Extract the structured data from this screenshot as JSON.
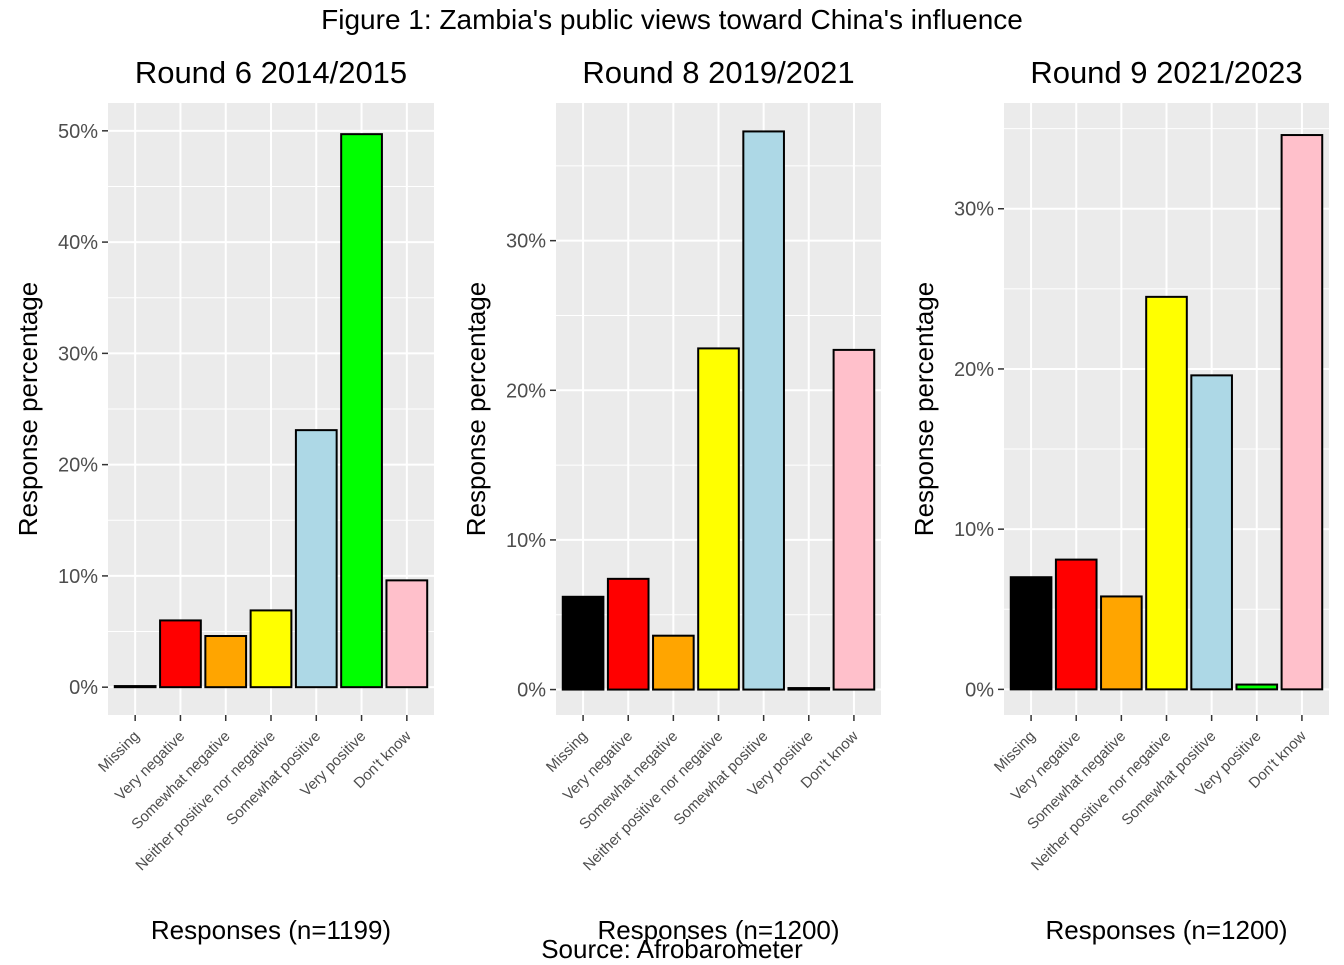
{
  "figure": {
    "title": "Figure 1: Zambia's public views toward China's influence",
    "source": "Source: Afrobarometer"
  },
  "colors": {
    "Missing": "#000000",
    "Very negative": "#ff0000",
    "Somewhat negative": "#ffa500",
    "Neither positive nor negative": "#ffff00",
    "Somewhat positive": "#add8e6",
    "Very positive": "#00ff00",
    "Don't know": "#ffc0cb",
    "panel_background": "#ebebeb",
    "grid": "#ffffff"
  },
  "chart_data": [
    {
      "type": "bar",
      "title": "Round 6 2014/2015",
      "xlabel": "Responses (n=1199)",
      "ylabel": "Response percentage",
      "categories": [
        "Missing",
        "Very negative",
        "Somewhat negative",
        "Neither positive nor negative",
        "Somewhat positive",
        "Very positive",
        "Don't know"
      ],
      "values": [
        0.1,
        6.0,
        4.6,
        6.9,
        23.1,
        49.7,
        9.6
      ],
      "ylim": [
        -2.5,
        52.5
      ],
      "yticks": [
        0,
        10,
        20,
        30,
        40,
        50
      ],
      "ytick_labels": [
        "0%",
        "10%",
        "20%",
        "30%",
        "40%",
        "50%"
      ],
      "grid": true,
      "legend": "none"
    },
    {
      "type": "bar",
      "title": "Round 8 2019/2021",
      "xlabel": "Responses (n=1200)",
      "ylabel": "Response percentage",
      "categories": [
        "Missing",
        "Very negative",
        "Somewhat negative",
        "Neither positive nor negative",
        "Somewhat positive",
        "Very positive",
        "Don't know"
      ],
      "values": [
        6.2,
        7.4,
        3.6,
        22.8,
        37.3,
        0.1,
        22.7
      ],
      "ylim": [
        -1.7,
        39.2
      ],
      "yticks": [
        0,
        10,
        20,
        30
      ],
      "ytick_labels": [
        "0%",
        "10%",
        "20%",
        "30%"
      ],
      "grid": true,
      "legend": "none"
    },
    {
      "type": "bar",
      "title": "Round 9 2021/2023",
      "xlabel": "Responses (n=1200)",
      "ylabel": "Response percentage",
      "categories": [
        "Missing",
        "Very negative",
        "Somewhat negative",
        "Neither positive nor negative",
        "Somewhat positive",
        "Very positive",
        "Don't know"
      ],
      "values": [
        7.0,
        8.1,
        5.8,
        24.5,
        19.6,
        0.3,
        34.6
      ],
      "ylim": [
        -1.6,
        36.6
      ],
      "yticks": [
        0,
        10,
        20,
        30
      ],
      "ytick_labels": [
        "0%",
        "10%",
        "20%",
        "30%"
      ],
      "grid": true,
      "legend": "none"
    }
  ]
}
